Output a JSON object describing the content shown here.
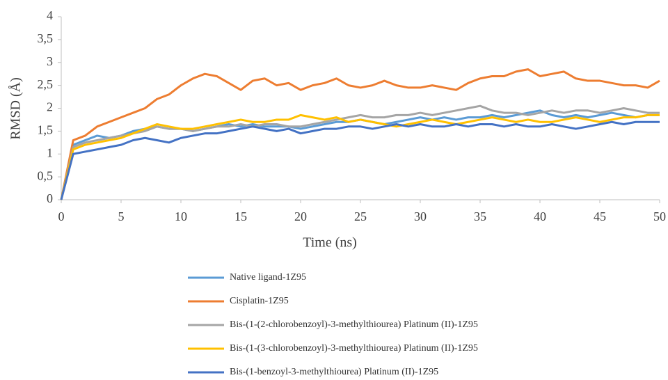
{
  "chart_data": {
    "type": "line",
    "x_label": "Time (ns)",
    "y_label": "RMSD (Å)",
    "x": [
      0,
      1,
      2,
      3,
      4,
      5,
      6,
      7,
      8,
      9,
      10,
      11,
      12,
      13,
      14,
      15,
      16,
      17,
      18,
      19,
      20,
      21,
      22,
      23,
      24,
      25,
      26,
      27,
      28,
      29,
      30,
      31,
      32,
      33,
      34,
      35,
      36,
      37,
      38,
      39,
      40,
      41,
      42,
      43,
      44,
      45,
      46,
      47,
      48,
      49,
      50
    ],
    "xlim": [
      0,
      50
    ],
    "xticks": [
      0,
      5,
      10,
      15,
      20,
      25,
      30,
      35,
      40,
      45,
      50
    ],
    "ylim": [
      0,
      4
    ],
    "yticks": [
      0,
      {
        "value": 0.5,
        "label": "0,5"
      },
      1,
      {
        "value": 1.5,
        "label": "1,5"
      },
      2,
      {
        "value": 2.5,
        "label": "2,5"
      },
      3,
      {
        "value": 3.5,
        "label": "3,5"
      },
      4
    ],
    "grid": false,
    "series": [
      {
        "name": "Native ligand-1Z95",
        "color": "#5b9bd5",
        "values": [
          0,
          1.2,
          1.3,
          1.4,
          1.35,
          1.4,
          1.5,
          1.55,
          1.6,
          1.55,
          1.55,
          1.5,
          1.55,
          1.6,
          1.65,
          1.6,
          1.65,
          1.6,
          1.6,
          1.6,
          1.55,
          1.6,
          1.65,
          1.7,
          1.7,
          1.75,
          1.7,
          1.65,
          1.7,
          1.75,
          1.8,
          1.75,
          1.8,
          1.75,
          1.8,
          1.8,
          1.85,
          1.8,
          1.85,
          1.9,
          1.95,
          1.85,
          1.8,
          1.85,
          1.8,
          1.85,
          1.9,
          1.85,
          1.8,
          1.85,
          1.85
        ]
      },
      {
        "name": "Cisplatin-1Z95",
        "color": "#ed7d31",
        "values": [
          0,
          1.3,
          1.4,
          1.6,
          1.7,
          1.8,
          1.9,
          2.0,
          2.2,
          2.3,
          2.5,
          2.65,
          2.75,
          2.7,
          2.55,
          2.4,
          2.6,
          2.65,
          2.5,
          2.55,
          2.4,
          2.5,
          2.55,
          2.65,
          2.5,
          2.45,
          2.5,
          2.6,
          2.5,
          2.45,
          2.45,
          2.5,
          2.45,
          2.4,
          2.55,
          2.65,
          2.7,
          2.7,
          2.8,
          2.85,
          2.7,
          2.75,
          2.8,
          2.65,
          2.6,
          2.6,
          2.55,
          2.5,
          2.5,
          2.45,
          2.6
        ]
      },
      {
        "name": "Bis-(1-(2-chlorobenzoyl)-3-methylthiourea) Platinum (II)-1Z95",
        "color": "#a5a5a5",
        "values": [
          0,
          1.15,
          1.25,
          1.3,
          1.35,
          1.4,
          1.45,
          1.5,
          1.6,
          1.55,
          1.55,
          1.5,
          1.55,
          1.6,
          1.6,
          1.65,
          1.6,
          1.65,
          1.65,
          1.6,
          1.6,
          1.65,
          1.7,
          1.75,
          1.8,
          1.85,
          1.8,
          1.8,
          1.85,
          1.85,
          1.9,
          1.85,
          1.9,
          1.95,
          2.0,
          2.05,
          1.95,
          1.9,
          1.9,
          1.85,
          1.9,
          1.95,
          1.9,
          1.95,
          1.95,
          1.9,
          1.95,
          2.0,
          1.95,
          1.9,
          1.9
        ]
      },
      {
        "name": "Bis-(1-(3-chlorobenzoyl)-3-methylthiourea) Platinum (II)-1Z95",
        "color": "#ffc000",
        "values": [
          0,
          1.1,
          1.2,
          1.25,
          1.3,
          1.35,
          1.45,
          1.55,
          1.65,
          1.6,
          1.55,
          1.55,
          1.6,
          1.65,
          1.7,
          1.75,
          1.7,
          1.7,
          1.75,
          1.75,
          1.85,
          1.8,
          1.75,
          1.8,
          1.7,
          1.75,
          1.7,
          1.65,
          1.6,
          1.65,
          1.7,
          1.75,
          1.7,
          1.65,
          1.7,
          1.75,
          1.8,
          1.75,
          1.7,
          1.75,
          1.7,
          1.7,
          1.75,
          1.8,
          1.75,
          1.7,
          1.75,
          1.8,
          1.8,
          1.85,
          1.85
        ]
      },
      {
        "name": "Bis-(1-benzoyl-3-methylthiourea) Platinum (II)-1Z95",
        "color": "#4472c4",
        "values": [
          0,
          1.0,
          1.05,
          1.1,
          1.15,
          1.2,
          1.3,
          1.35,
          1.3,
          1.25,
          1.35,
          1.4,
          1.45,
          1.45,
          1.5,
          1.55,
          1.6,
          1.55,
          1.5,
          1.55,
          1.45,
          1.5,
          1.55,
          1.55,
          1.6,
          1.6,
          1.55,
          1.6,
          1.65,
          1.6,
          1.65,
          1.6,
          1.6,
          1.65,
          1.6,
          1.65,
          1.65,
          1.6,
          1.65,
          1.6,
          1.6,
          1.65,
          1.6,
          1.55,
          1.6,
          1.65,
          1.7,
          1.65,
          1.7,
          1.7,
          1.7
        ]
      }
    ]
  }
}
